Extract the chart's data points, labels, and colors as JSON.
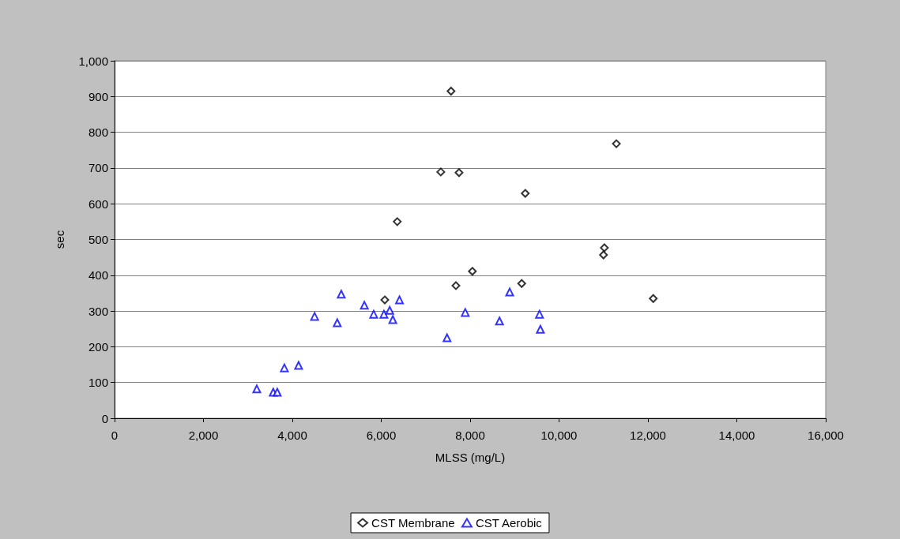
{
  "chart_data": {
    "type": "scatter",
    "xlabel": "MLSS (mg/L)",
    "ylabel": "sec",
    "xlim": [
      0,
      16000
    ],
    "xticks": [
      {
        "value": 0,
        "label": "0"
      },
      {
        "value": 2000,
        "label": "2,000"
      },
      {
        "value": 4000,
        "label": "4,000"
      },
      {
        "value": 6000,
        "label": "6,000"
      },
      {
        "value": 8000,
        "label": "8,000"
      },
      {
        "value": 10000,
        "label": "10,000"
      },
      {
        "value": 12000,
        "label": "12,000"
      },
      {
        "value": 14000,
        "label": "14,000"
      },
      {
        "value": 16000,
        "label": "16,000"
      }
    ],
    "ylim": [
      0,
      1000
    ],
    "yticks": [
      0,
      100,
      200,
      300,
      400,
      500,
      600,
      700,
      800,
      900,
      {
        "value": 1000,
        "label": "1,000"
      }
    ],
    "grid": "y",
    "legend": "bottom",
    "series": [
      {
        "name": "CST Membrane",
        "color": "#000000",
        "marker": "diamond",
        "x": [
          7570,
          7340,
          7750,
          6360,
          9240,
          11290,
          11020,
          11000,
          8050,
          7680,
          9160,
          6080,
          12120
        ],
        "values": [
          915,
          689,
          687,
          550,
          629,
          768,
          477,
          457,
          411,
          371,
          377,
          331,
          335
        ]
      },
      {
        "name": "CST Aerobic",
        "color": "#0000ff",
        "marker": "triangle",
        "x": [
          3200,
          3570,
          3660,
          3820,
          4140,
          4500,
          5010,
          5100,
          5620,
          5830,
          6060,
          6190,
          6260,
          6410,
          7480,
          7890,
          8660,
          8890,
          9560,
          9580
        ],
        "values": [
          82,
          73,
          73,
          141,
          148,
          285,
          267,
          347,
          316,
          291,
          291,
          302,
          276,
          331,
          225,
          296,
          272,
          353,
          291,
          249
        ]
      }
    ]
  }
}
